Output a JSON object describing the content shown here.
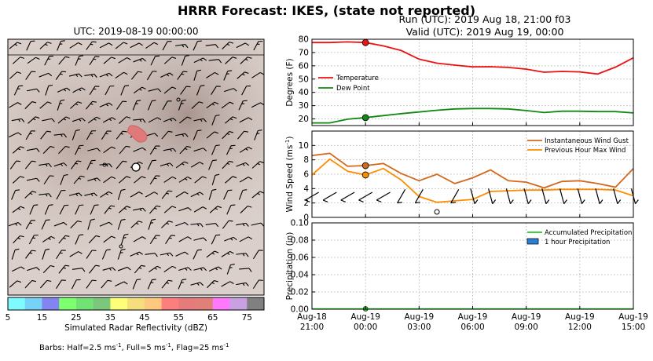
{
  "figure": {
    "title": "HRRR Forecast: IKES, (state not reported)",
    "map_title": "UTC: 2019-08-19 00:00:00",
    "run_line": "Run (UTC): 2019 Aug 18, 21:00 f03",
    "valid_line": "Valid (UTC): 2019 Aug 19, 00:00",
    "barbs_note": "Barbs: Half=2.5 ms-1, Full=5 ms-1, Flag=25 ms-1"
  },
  "colorbar": {
    "label": "Simulated Radar Reflectivity (dBZ)",
    "ticks": [
      "5",
      "15",
      "25",
      "35",
      "45",
      "55",
      "65",
      "75"
    ],
    "colors": [
      "#7ffbff",
      "#78d2f6",
      "#8484f0",
      "#7dff70",
      "#73e274",
      "#7bc77c",
      "#fdff79",
      "#f5de7b",
      "#fec87e",
      "#fd7f7d",
      "#e67b7c",
      "#e08079",
      "#ff79ff",
      "#c9a0e2",
      "#808080"
    ]
  },
  "chart_data": [
    {
      "type": "line",
      "ylabel": "Degrees (F)",
      "ylim": [
        15,
        80
      ],
      "yticks": [
        20,
        30,
        40,
        50,
        60,
        70,
        80
      ],
      "x_hours": [
        0,
        1,
        2,
        3,
        4,
        5,
        6,
        7,
        8,
        9,
        10,
        11,
        12,
        13,
        14,
        15,
        16,
        17,
        18
      ],
      "series": [
        {
          "name": "Temperature",
          "color": "#ee1111",
          "values": [
            77.5,
            77.5,
            78,
            77.5,
            75,
            71.5,
            65,
            62,
            60.5,
            59.2,
            59.3,
            58.8,
            57.5,
            55.2,
            55.8,
            55.4,
            53.8,
            59,
            66
          ]
        },
        {
          "name": "Dew Point",
          "color": "#118811",
          "values": [
            17,
            17,
            19.8,
            21,
            22.5,
            24,
            25.2,
            26.5,
            27.5,
            27.8,
            27.8,
            27.5,
            26.3,
            24.8,
            25.8,
            25.8,
            25.5,
            25.5,
            24.5
          ]
        }
      ],
      "marker_hour": 3,
      "legend": "center-left",
      "grid": true
    },
    {
      "type": "line",
      "ylabel": "Wind Speed (ms-1)",
      "ylim": [
        0,
        12
      ],
      "yticks": [
        0,
        2,
        4,
        6,
        8,
        10
      ],
      "x_hours": [
        0,
        1,
        2,
        3,
        4,
        5,
        6,
        7,
        8,
        9,
        10,
        11,
        12,
        13,
        14,
        15,
        16,
        17,
        18
      ],
      "series": [
        {
          "name": "Instantaneous Wind Gust",
          "color": "#d2691e",
          "values": [
            8.6,
            8.9,
            7.1,
            7.2,
            7.5,
            6.1,
            5.1,
            6,
            4.7,
            5.5,
            6.6,
            5.1,
            4.9,
            4.1,
            5,
            5.1,
            4.7,
            4.2,
            6.8
          ]
        },
        {
          "name": "Previous Hour Max Wind",
          "color": "#ff8c00",
          "values": [
            5.9,
            8.1,
            6.4,
            5.9,
            6.8,
            5.2,
            2.9,
            2.1,
            2.3,
            2.5,
            3.6,
            3.7,
            3.8,
            3.8,
            3.9,
            3.9,
            3.9,
            3.8,
            3.0
          ]
        }
      ],
      "marker_hour": 3,
      "legend": "top-right",
      "grid": true
    },
    {
      "type": "bar",
      "ylabel": "Precipitation (in)",
      "ylim": [
        0,
        0.1
      ],
      "yticks": [
        "0.00",
        "0.02",
        "0.04",
        "0.06",
        "0.08",
        "0.10"
      ],
      "x_hours": [
        0,
        1,
        2,
        3,
        4,
        5,
        6,
        7,
        8,
        9,
        10,
        11,
        12,
        13,
        14,
        15,
        16,
        17,
        18
      ],
      "series": [
        {
          "name": "Accumulated Precipitation",
          "color": "#22cc22",
          "values": [
            0,
            0,
            0,
            0,
            0,
            0,
            0,
            0,
            0,
            0,
            0,
            0,
            0,
            0,
            0,
            0,
            0,
            0,
            0
          ]
        },
        {
          "name": "1 hour Precipitation",
          "color": "#2a7fd4",
          "values": [
            0,
            0,
            0,
            0,
            0,
            0,
            0,
            0,
            0,
            0,
            0,
            0,
            0,
            0,
            0,
            0,
            0,
            0,
            0
          ]
        }
      ],
      "marker_hour": 3,
      "legend": "top-right",
      "grid": true
    }
  ],
  "xticks": [
    {
      "hour": 0,
      "l1": "Aug-18",
      "l2": "21:00"
    },
    {
      "hour": 3,
      "l1": "Aug-19",
      "l2": "00:00"
    },
    {
      "hour": 6,
      "l1": "Aug-19",
      "l2": "03:00"
    },
    {
      "hour": 9,
      "l1": "Aug-19",
      "l2": "06:00"
    },
    {
      "hour": 12,
      "l1": "Aug-19",
      "l2": "09:00"
    },
    {
      "hour": 15,
      "l1": "Aug-19",
      "l2": "12:00"
    },
    {
      "hour": 18,
      "l1": "Aug-19",
      "l2": "15:00"
    }
  ]
}
